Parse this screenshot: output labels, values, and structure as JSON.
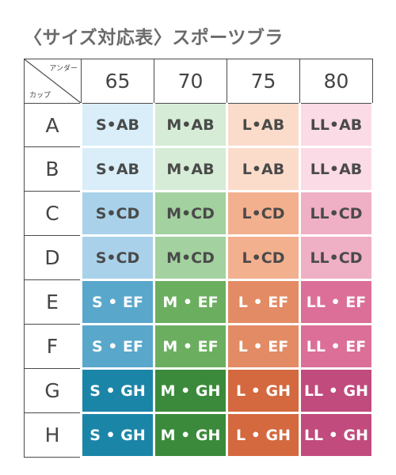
{
  "title": "〈サイズ対応表〉スポーツブラ",
  "corner": {
    "top_label": "アンダー",
    "bottom_label": "カップ"
  },
  "bands": [
    "65",
    "70",
    "75",
    "80"
  ],
  "rows": [
    {
      "cup": "A",
      "sizes": [
        "S•AB",
        "M•AB",
        "L•AB",
        "LL•AB"
      ]
    },
    {
      "cup": "B",
      "sizes": [
        "S•AB",
        "M•AB",
        "L•AB",
        "LL•AB"
      ]
    },
    {
      "cup": "C",
      "sizes": [
        "S•CD",
        "M•CD",
        "L•CD",
        "LL•CD"
      ]
    },
    {
      "cup": "D",
      "sizes": [
        "S•CD",
        "M•CD",
        "L•CD",
        "LL•CD"
      ]
    },
    {
      "cup": "E",
      "sizes": [
        "S • EF",
        "M • EF",
        "L • EF",
        "LL • EF"
      ]
    },
    {
      "cup": "F",
      "sizes": [
        "S • EF",
        "M • EF",
        "L • EF",
        "LL • EF"
      ]
    },
    {
      "cup": "G",
      "sizes": [
        "S • GH",
        "M • GH",
        "L • GH",
        "LL • GH"
      ]
    },
    {
      "cup": "H",
      "sizes": [
        "S • GH",
        "M • GH",
        "L • GH",
        "LL • GH"
      ]
    }
  ],
  "colors": {
    "S": [
      "#d9eef9",
      "#a9d2ea",
      "#5aa7cc",
      "#1b85a8"
    ],
    "M": [
      "#d6ecd6",
      "#a3d19f",
      "#6bae5f",
      "#3b8a3b"
    ],
    "L": [
      "#fbdccb",
      "#f3b08f",
      "#e38b64",
      "#d4683e"
    ],
    "LL": [
      "#fbdbe6",
      "#efafc4",
      "#db6f97",
      "#c04b7c"
    ]
  }
}
